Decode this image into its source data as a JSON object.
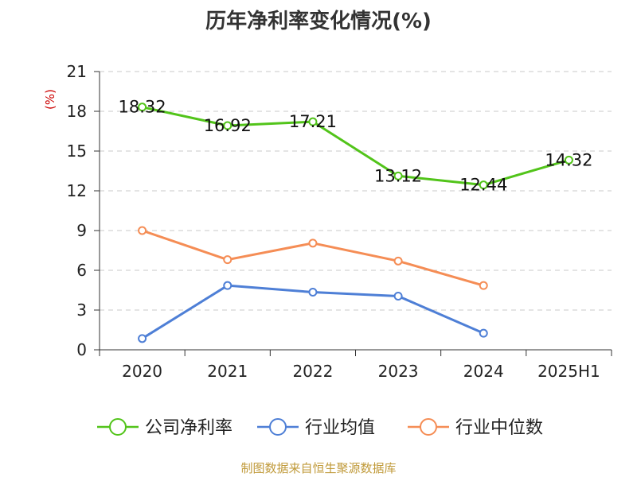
{
  "chart_data": {
    "type": "line",
    "title": "历年净利率变化情况(%)",
    "ylabel": "(%)",
    "categories": [
      "2020",
      "2021",
      "2022",
      "2023",
      "2024",
      "2025H1"
    ],
    "ylim": [
      0,
      21
    ],
    "yticks": [
      0,
      3,
      6,
      9,
      12,
      15,
      18,
      21
    ],
    "grid": "horizontal-dashed",
    "legend_position": "bottom",
    "series": [
      {
        "name": "公司净利率",
        "color": "#52c41a",
        "values": [
          18.32,
          16.92,
          17.21,
          13.12,
          12.44,
          14.32
        ],
        "labels": [
          "18.32",
          "16.92",
          "17.21",
          "13.12",
          "12.44",
          "14.32"
        ]
      },
      {
        "name": "行业均值",
        "color": "#4e7fd6",
        "values": [
          0.85,
          4.85,
          4.35,
          4.05,
          1.25,
          null
        ]
      },
      {
        "name": "行业中位数",
        "color": "#f58d55",
        "values": [
          9.0,
          6.8,
          8.05,
          6.7,
          4.85,
          null
        ]
      }
    ]
  },
  "source": "制图数据来自恒生聚源数据库"
}
